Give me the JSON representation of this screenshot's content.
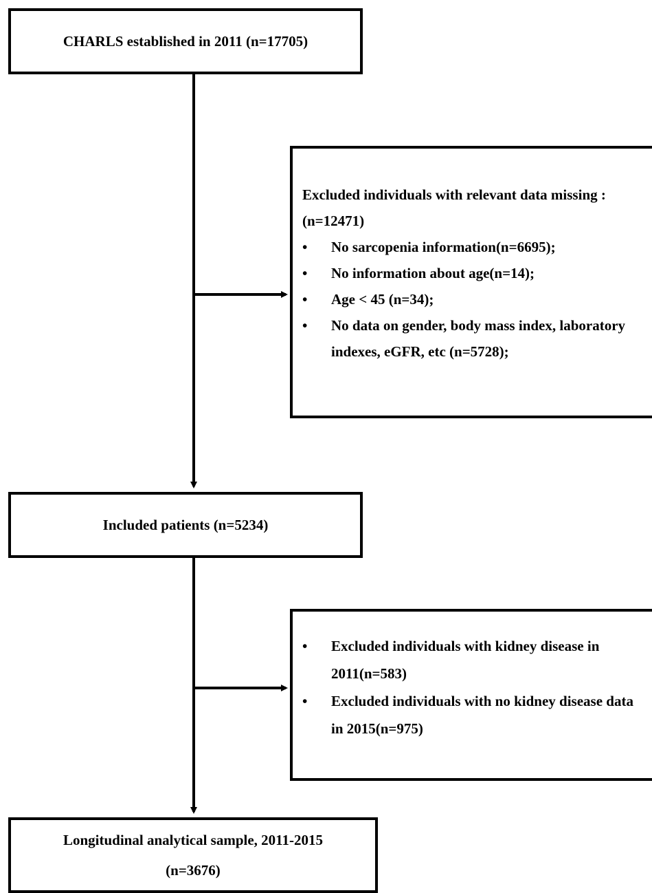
{
  "start_box": {
    "text": "CHARLS established in 2011 (n=17705)"
  },
  "exclusion_1": {
    "title": "Excluded individuals with relevant data missing : (n=12471)",
    "items": [
      "No sarcopenia information(n=6695);",
      "No information about age(n=14);",
      "Age < 45 (n=34);",
      "No data on gender, body mass index, laboratory indexes, eGFR, etc (n=5728);"
    ]
  },
  "included_box": {
    "text": "Included patients (n=5234)"
  },
  "exclusion_2": {
    "items": [
      "Excluded individuals with kidney disease in 2011(n=583)",
      "Excluded individuals with no kidney disease data in 2015(n=975)"
    ]
  },
  "final_box": {
    "line1": "Longitudinal analytical sample, 2011-2015",
    "line2": "(n=3676)"
  },
  "bullet_symbol": "•",
  "colors": {
    "line": "#000000",
    "background": "#ffffff"
  }
}
